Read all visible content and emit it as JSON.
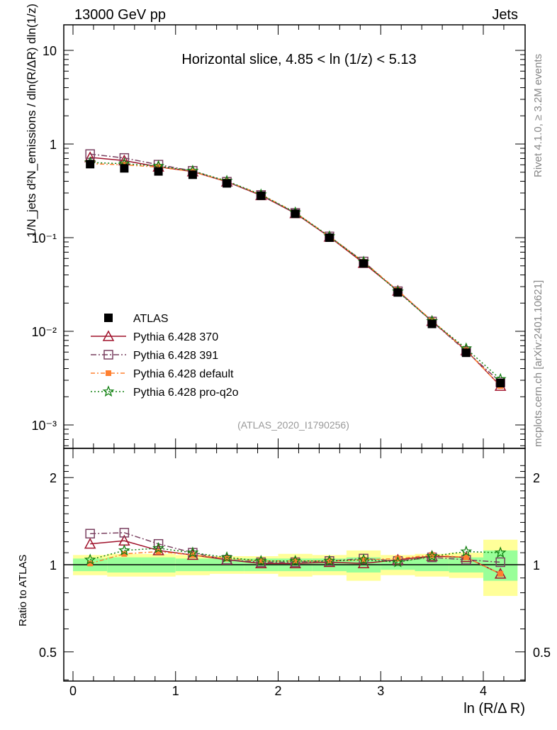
{
  "header": {
    "left": "13000 GeV pp",
    "right": "Jets"
  },
  "side": {
    "rivet": "Rivet 4.1.0, ≥ 3.2M events",
    "mcplots": "mcplots.cern.ch [arXiv:2401.10621]"
  },
  "chart_data": [
    {
      "type": "line",
      "title": "Horizontal slice, 4.85 < ln (1/z) < 5.13",
      "analysis": "(ATLAS_2020_I1790256)",
      "xlabel": "ln (R/Δ R)",
      "ylabel": "1/N_jets d²N_emissions / dln(R/ΔR) dln(1/z)",
      "yscale": "log",
      "ylim": [
        0.0006,
        18
      ],
      "xlim": [
        -0.1,
        4.4
      ],
      "ytick_labels": [
        "10",
        "1",
        "10⁻¹",
        "10⁻²",
        "10⁻³"
      ],
      "x": [
        0.167,
        0.5,
        0.833,
        1.167,
        1.5,
        1.833,
        2.167,
        2.5,
        2.833,
        3.167,
        3.5,
        3.833,
        4.167
      ],
      "atlas": [
        0.61,
        0.55,
        0.51,
        0.47,
        0.38,
        0.28,
        0.18,
        0.1,
        0.053,
        0.026,
        0.012,
        0.0059,
        0.0028
      ],
      "legend": [
        "ATLAS",
        "Pythia 6.428 370",
        "Pythia 6.428 391",
        "Pythia 6.428 default",
        "Pythia 6.428 pro-q2o"
      ],
      "legend_placement": "bottom-left"
    },
    {
      "type": "line",
      "ylabel": "Ratio to ATLAS",
      "yscale": "log",
      "ylim": [
        0.43,
        2.3
      ],
      "xtick_labels": [
        "0",
        "1",
        "2",
        "3",
        "4"
      ],
      "ytick_labels": [
        "2",
        "1",
        "0.5"
      ],
      "band_stat": [
        0.05,
        0.06,
        0.06,
        0.05,
        0.05,
        0.05,
        0.05,
        0.05,
        0.06,
        0.04,
        0.05,
        0.06,
        0.12
      ],
      "band_total": [
        0.08,
        0.09,
        0.09,
        0.08,
        0.07,
        0.07,
        0.09,
        0.08,
        0.12,
        0.08,
        0.09,
        0.1,
        0.22
      ],
      "series": [
        {
          "name": "Pythia 6.428 370",
          "color": "#a0132c",
          "values": [
            1.18,
            1.21,
            1.12,
            1.08,
            1.04,
            1.01,
            1.01,
            1.02,
            1.01,
            1.04,
            1.07,
            1.06,
            0.93
          ]
        },
        {
          "name": "Pythia 6.428 391",
          "color": "#7a4060",
          "values": [
            1.28,
            1.29,
            1.18,
            1.1,
            1.04,
            1.02,
            1.02,
            1.03,
            1.05,
            1.03,
            1.06,
            1.04,
            1.02
          ]
        },
        {
          "name": "Pythia 6.428 default",
          "color": "#ff8030",
          "values": [
            1.01,
            1.09,
            1.11,
            1.08,
            1.05,
            1.03,
            1.03,
            1.03,
            1.04,
            1.05,
            1.08,
            1.06,
            0.93
          ]
        },
        {
          "name": "Pythia 6.428 pro-q2o",
          "color": "#108010",
          "values": [
            1.04,
            1.12,
            1.14,
            1.1,
            1.06,
            1.03,
            1.03,
            1.03,
            1.04,
            1.02,
            1.07,
            1.11,
            1.1
          ]
        }
      ]
    }
  ]
}
